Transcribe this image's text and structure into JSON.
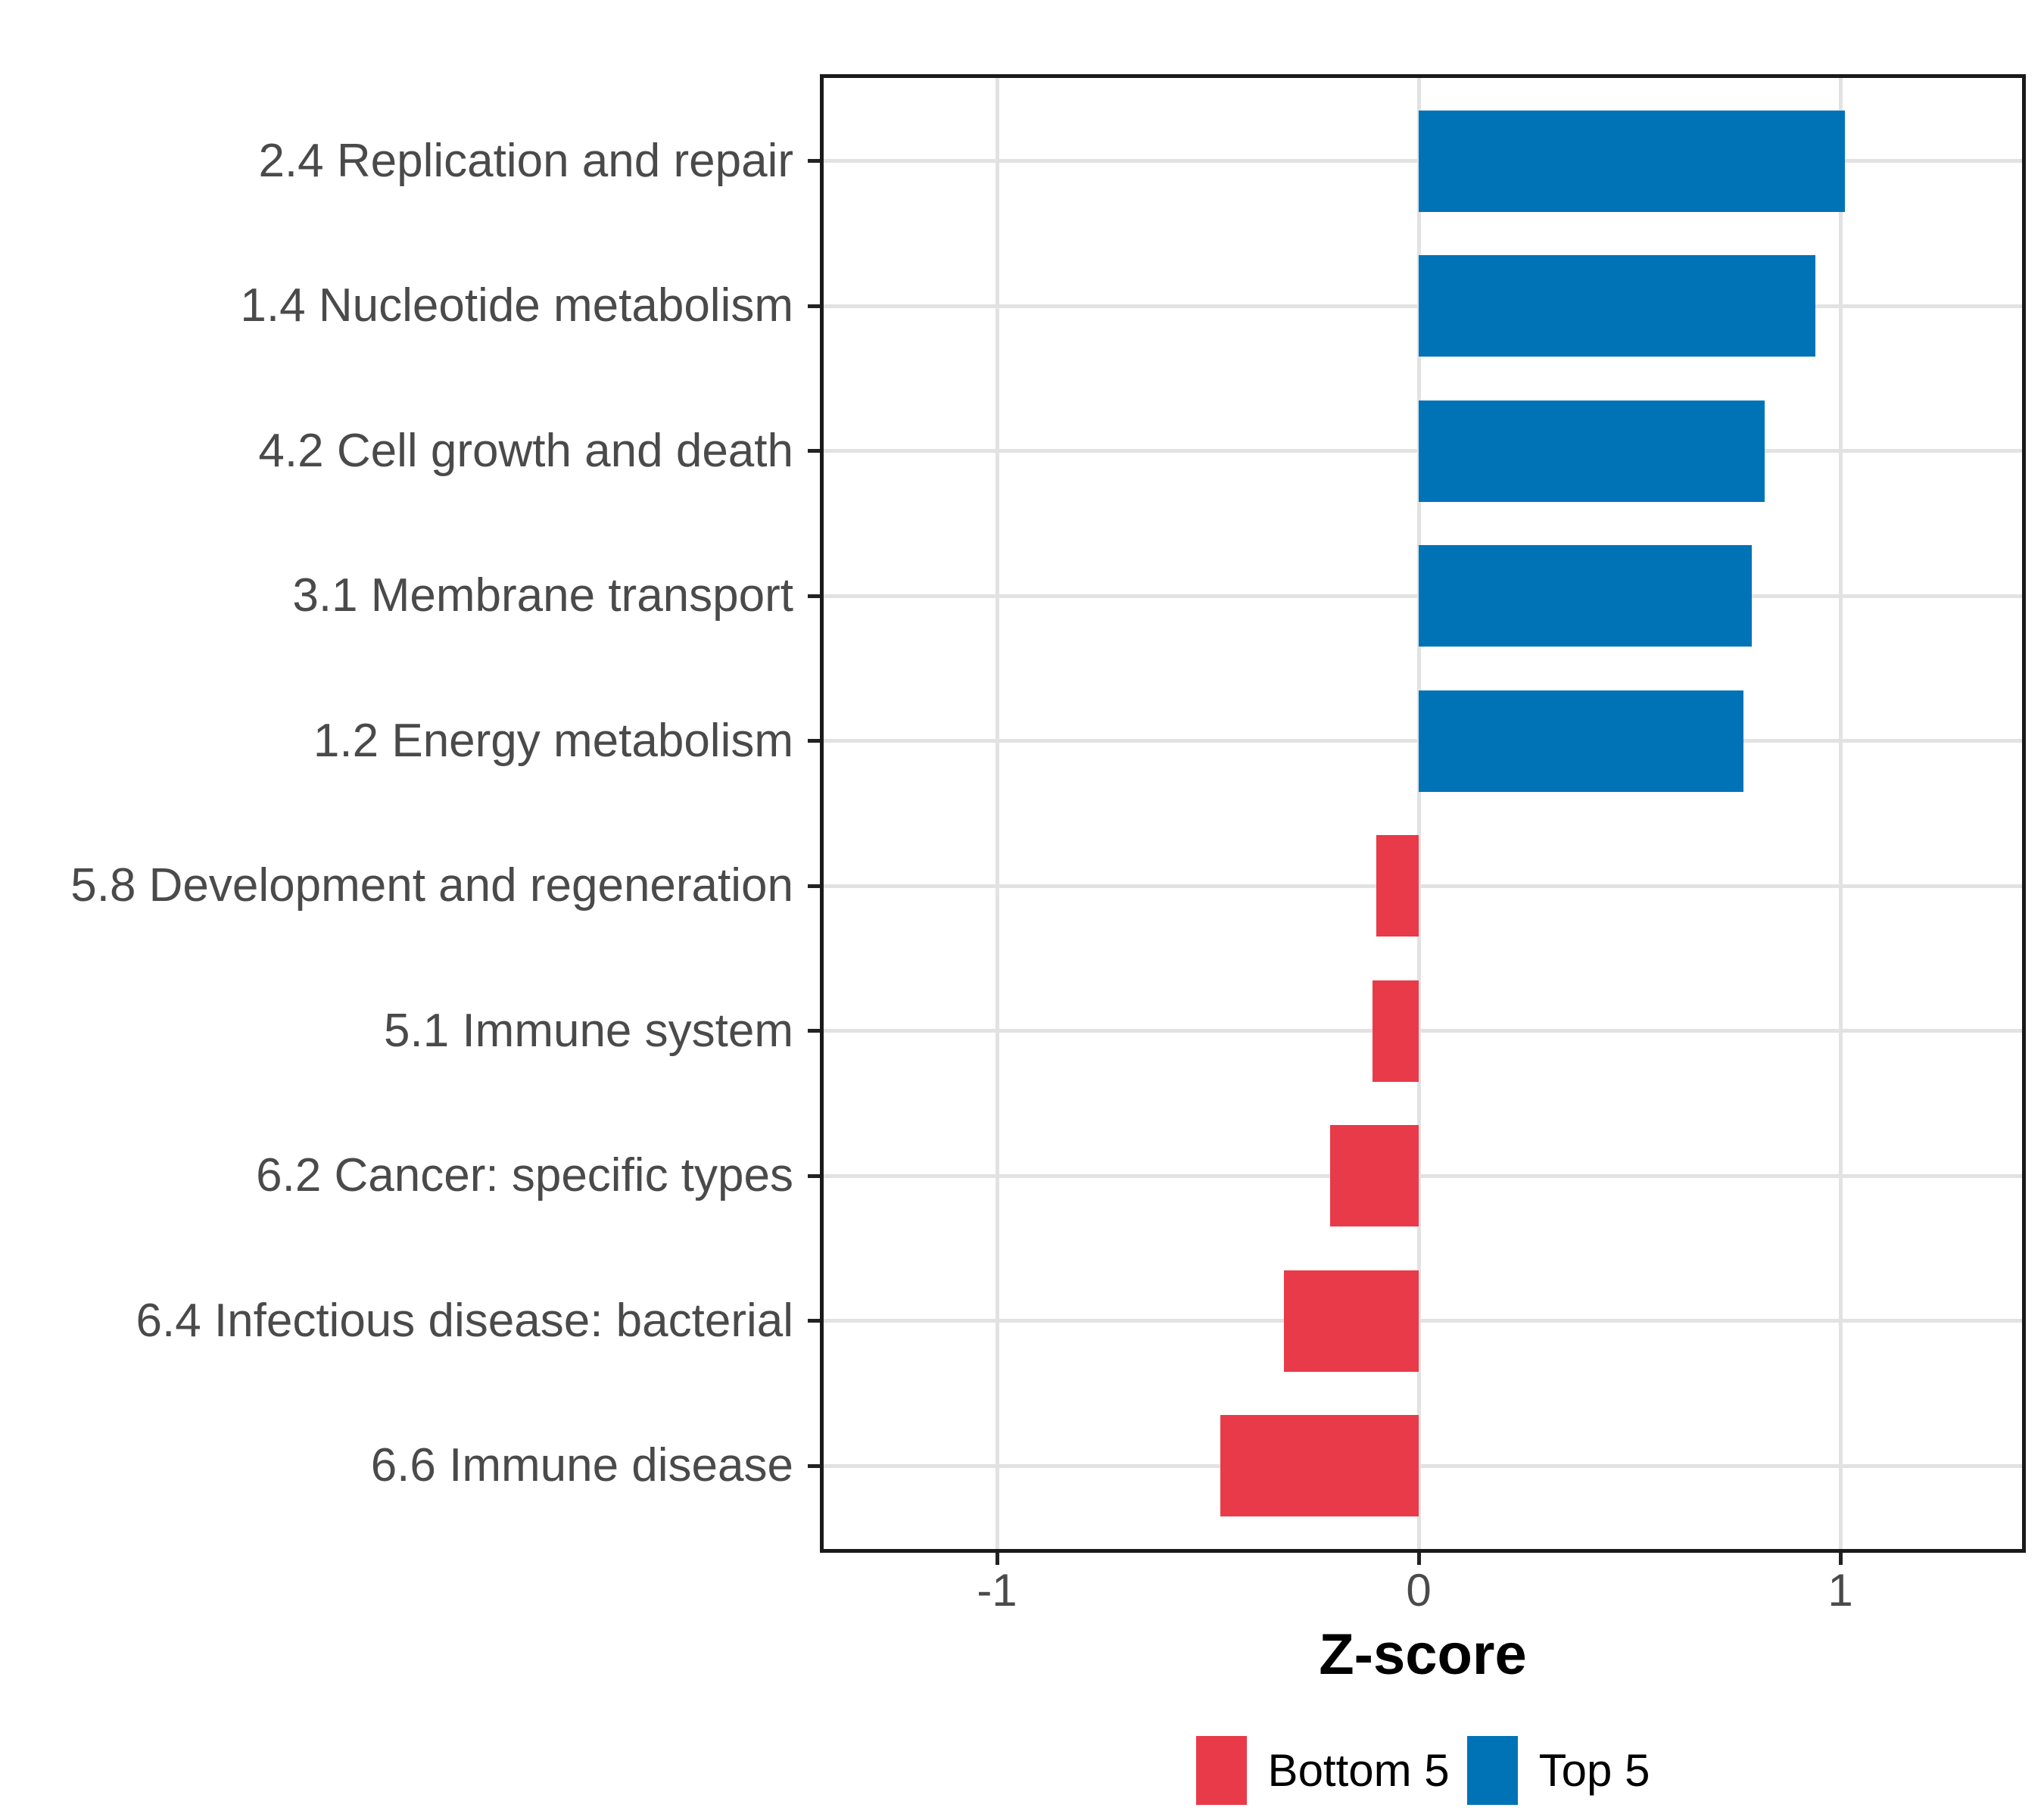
{
  "chart_data": {
    "type": "bar",
    "orientation": "horizontal",
    "title": "",
    "xlabel": "Z-score",
    "ylabel": "",
    "categories": [
      "2.4 Replication and repair",
      "1.4 Nucleotide metabolism",
      "4.2 Cell growth and death",
      "3.1 Membrane transport",
      "1.2 Energy metabolism",
      "5.8 Development and regeneration",
      "5.1 Immune system",
      "6.2 Cancer: specific types",
      "6.4 Infectious disease: bacterial",
      "6.6 Immune disease"
    ],
    "values": [
      1.01,
      0.94,
      0.82,
      0.79,
      0.77,
      -0.1,
      -0.11,
      -0.21,
      -0.32,
      -0.47
    ],
    "groups": [
      "Top 5",
      "Top 5",
      "Top 5",
      "Top 5",
      "Top 5",
      "Bottom 5",
      "Bottom 5",
      "Bottom 5",
      "Bottom 5",
      "Bottom 5"
    ],
    "xticks": [
      -1,
      0,
      1
    ],
    "xtick_labels": [
      "-1",
      "0",
      "1"
    ],
    "xlim": [
      -1.42,
      1.44
    ],
    "grid": true,
    "legend_position": "bottom",
    "legend": [
      {
        "label": "Bottom 5",
        "color": "#E83A49"
      },
      {
        "label": "Top 5",
        "color": "#0073B7"
      }
    ],
    "colors": {
      "Top 5": "#0073B7",
      "Bottom 5": "#E83A49",
      "grid": "#E2E2E2",
      "panel_border": "#1A1A1A",
      "axis_text": "#4A4A4A",
      "axis_title": "#000000"
    }
  }
}
